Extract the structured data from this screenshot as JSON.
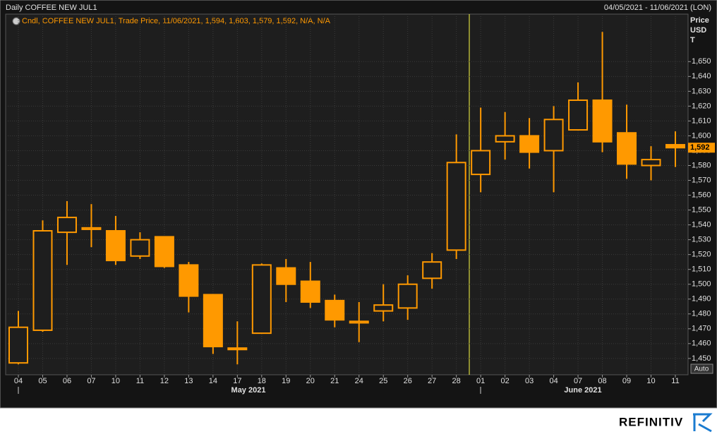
{
  "chart_data": {
    "type": "candlestick",
    "title": "Daily COFFEE NEW JUL1",
    "date_range": "04/05/2021 - 11/06/2021 (LON)",
    "legend": "Cndl, COFFEE NEW JUL1, Trade Price, 11/06/2021, 1,594, 1,603, 1,579, 1,592, N/A, N/A",
    "axis_unit": [
      "Price",
      "USD",
      "T"
    ],
    "categories": [
      "04",
      "05",
      "06",
      "07",
      "10",
      "11",
      "12",
      "13",
      "14",
      "17",
      "18",
      "19",
      "20",
      "21",
      "24",
      "25",
      "26",
      "27",
      "28",
      "01",
      "02",
      "03",
      "04",
      "07",
      "08",
      "09",
      "10",
      "11"
    ],
    "months": [
      "May 2021",
      "June 2021"
    ],
    "series": [
      {
        "color": "#ff9900",
        "open": [
          1447,
          1469,
          1535,
          1537,
          1536,
          1519,
          1532,
          1513,
          1493,
          1457,
          1467,
          1511,
          1502,
          1489,
          1474,
          1482,
          1484,
          1504,
          1523,
          1574,
          1596,
          1600,
          1590,
          1604,
          1624,
          1602,
          1580,
          1594
        ],
        "high": [
          1482,
          1543,
          1556,
          1554,
          1546,
          1535,
          1532,
          1515,
          1493,
          1475,
          1514,
          1517,
          1515,
          1493,
          1488,
          1500,
          1506,
          1521,
          1601,
          1619,
          1616,
          1612,
          1620,
          1636,
          1670,
          1621,
          1593,
          1603
        ],
        "low": [
          1446,
          1468,
          1513,
          1525,
          1513,
          1517,
          1511,
          1481,
          1453,
          1446,
          1467,
          1488,
          1484,
          1471,
          1461,
          1475,
          1476,
          1497,
          1517,
          1562,
          1584,
          1578,
          1562,
          1604,
          1589,
          1571,
          1570,
          1579
        ],
        "close": [
          1471,
          1536,
          1545,
          1538,
          1516,
          1530,
          1512,
          1492,
          1458,
          1456,
          1513,
          1500,
          1488,
          1476,
          1475,
          1486,
          1500,
          1515,
          1582,
          1590,
          1600,
          1589,
          1611,
          1624,
          1596,
          1581,
          1584,
          1592
        ]
      }
    ],
    "last_price": {
      "value": 1592,
      "label": "1,592"
    },
    "ylim": [
      1439,
      1682
    ],
    "yticks": [
      {
        "value": 1450,
        "label": "1,450"
      },
      {
        "value": 1460,
        "label": "1,460"
      },
      {
        "value": 1470,
        "label": "1,470"
      },
      {
        "value": 1480,
        "label": "1,480"
      },
      {
        "value": 1490,
        "label": "1,490"
      },
      {
        "value": 1500,
        "label": "1,500"
      },
      {
        "value": 1510,
        "label": "1,510"
      },
      {
        "value": 1520,
        "label": "1,520"
      },
      {
        "value": 1530,
        "label": "1,530"
      },
      {
        "value": 1540,
        "label": "1,540"
      },
      {
        "value": 1550,
        "label": "1,550"
      },
      {
        "value": 1560,
        "label": "1,560"
      },
      {
        "value": 1570,
        "label": "1,570"
      },
      {
        "value": 1580,
        "label": "1,580"
      },
      {
        "value": 1590,
        "label": "1,590"
      },
      {
        "value": 1600,
        "label": "1,600"
      },
      {
        "value": 1610,
        "label": "1,610"
      },
      {
        "value": 1620,
        "label": "1,620"
      },
      {
        "value": 1630,
        "label": "1,630"
      },
      {
        "value": 1640,
        "label": "1,640"
      },
      {
        "value": 1650,
        "label": "1,650"
      }
    ],
    "grid": true,
    "scale_button": "Auto"
  },
  "brand": "REFINITIV"
}
